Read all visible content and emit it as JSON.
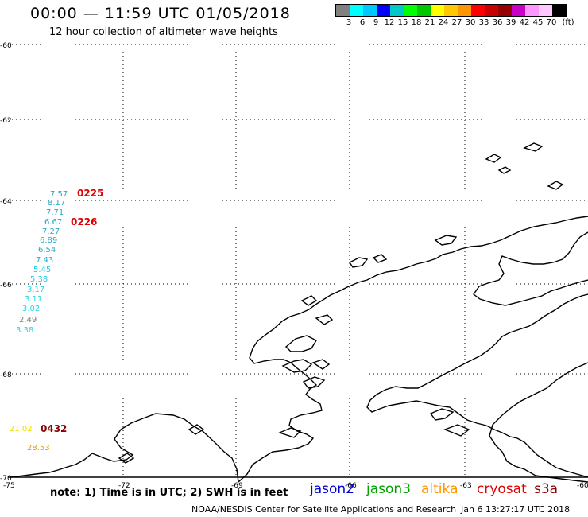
{
  "title": "00:00 — 11:59 UTC 01/05/2018",
  "subtitle": "12 hour collection of altimeter wave heights",
  "legend": {
    "unit": "(ft)",
    "colors": [
      "#808080",
      "#00ffff",
      "#00c8ff",
      "#0000ff",
      "#00c8c8",
      "#00ff00",
      "#00c800",
      "#ffff00",
      "#ffc800",
      "#ff9600",
      "#ff0000",
      "#c80000",
      "#960000",
      "#c800c8",
      "#ff96ff",
      "#ffc8ff",
      "#000000"
    ],
    "labels": [
      "3",
      "6",
      "9",
      "12",
      "15",
      "18",
      "21",
      "24",
      "27",
      "30",
      "33",
      "36",
      "39",
      "42",
      "45",
      "70"
    ]
  },
  "lat_labels": [
    "-60",
    "-62",
    "-64",
    "-66",
    "-68",
    "-70"
  ],
  "lon_labels": [
    "-75",
    "-72",
    "-69",
    "-66",
    "-63",
    "-60"
  ],
  "observations": [
    {
      "text": "7.57",
      "color": "#2aa8c8"
    },
    {
      "text": "8.17",
      "color": "#2aa8c8"
    },
    {
      "text": "7.71",
      "color": "#2aa8c8"
    },
    {
      "text": "6.67",
      "color": "#2aa8c8"
    },
    {
      "text": "7.27",
      "color": "#2aa8c8"
    },
    {
      "text": "6.89",
      "color": "#2aa8c8"
    },
    {
      "text": "6.54",
      "color": "#2aa8c8"
    },
    {
      "text": "7.43",
      "color": "#2aa8c8"
    },
    {
      "text": "5.45",
      "color": "#22c8e8"
    },
    {
      "text": "5.38",
      "color": "#22c8e8"
    },
    {
      "text": "3.17",
      "color": "#22d8e8"
    },
    {
      "text": "3.11",
      "color": "#22d8e8"
    },
    {
      "text": "3.02",
      "color": "#22d8e8"
    },
    {
      "text": "2.49",
      "color": "#808080"
    },
    {
      "text": "3.38",
      "color": "#22d8e8"
    },
    {
      "text": "21.02",
      "color": "#e8e000"
    },
    {
      "text": "28.53",
      "color": "#e0a000"
    }
  ],
  "pass_times": [
    {
      "text": "0225",
      "color": "#e00000"
    },
    {
      "text": "0226",
      "color": "#e00000"
    },
    {
      "text": "0432",
      "color": "#8b0000"
    }
  ],
  "note": "note: 1) Time is in UTC; 2) SWH is in feet",
  "satellites": [
    {
      "name": "jason2",
      "color": "#0000d0"
    },
    {
      "name": "jason3",
      "color": "#00a000"
    },
    {
      "name": "altika",
      "color": "#ff9600"
    },
    {
      "name": "cryosat",
      "color": "#e00000"
    },
    {
      "name": "s3a",
      "color": "#8b0000"
    }
  ],
  "credit": "NOAA/NESDIS Center for Satellite Applications and Research",
  "timestamp": "Jan  6 13:27:17 UTC 2018"
}
